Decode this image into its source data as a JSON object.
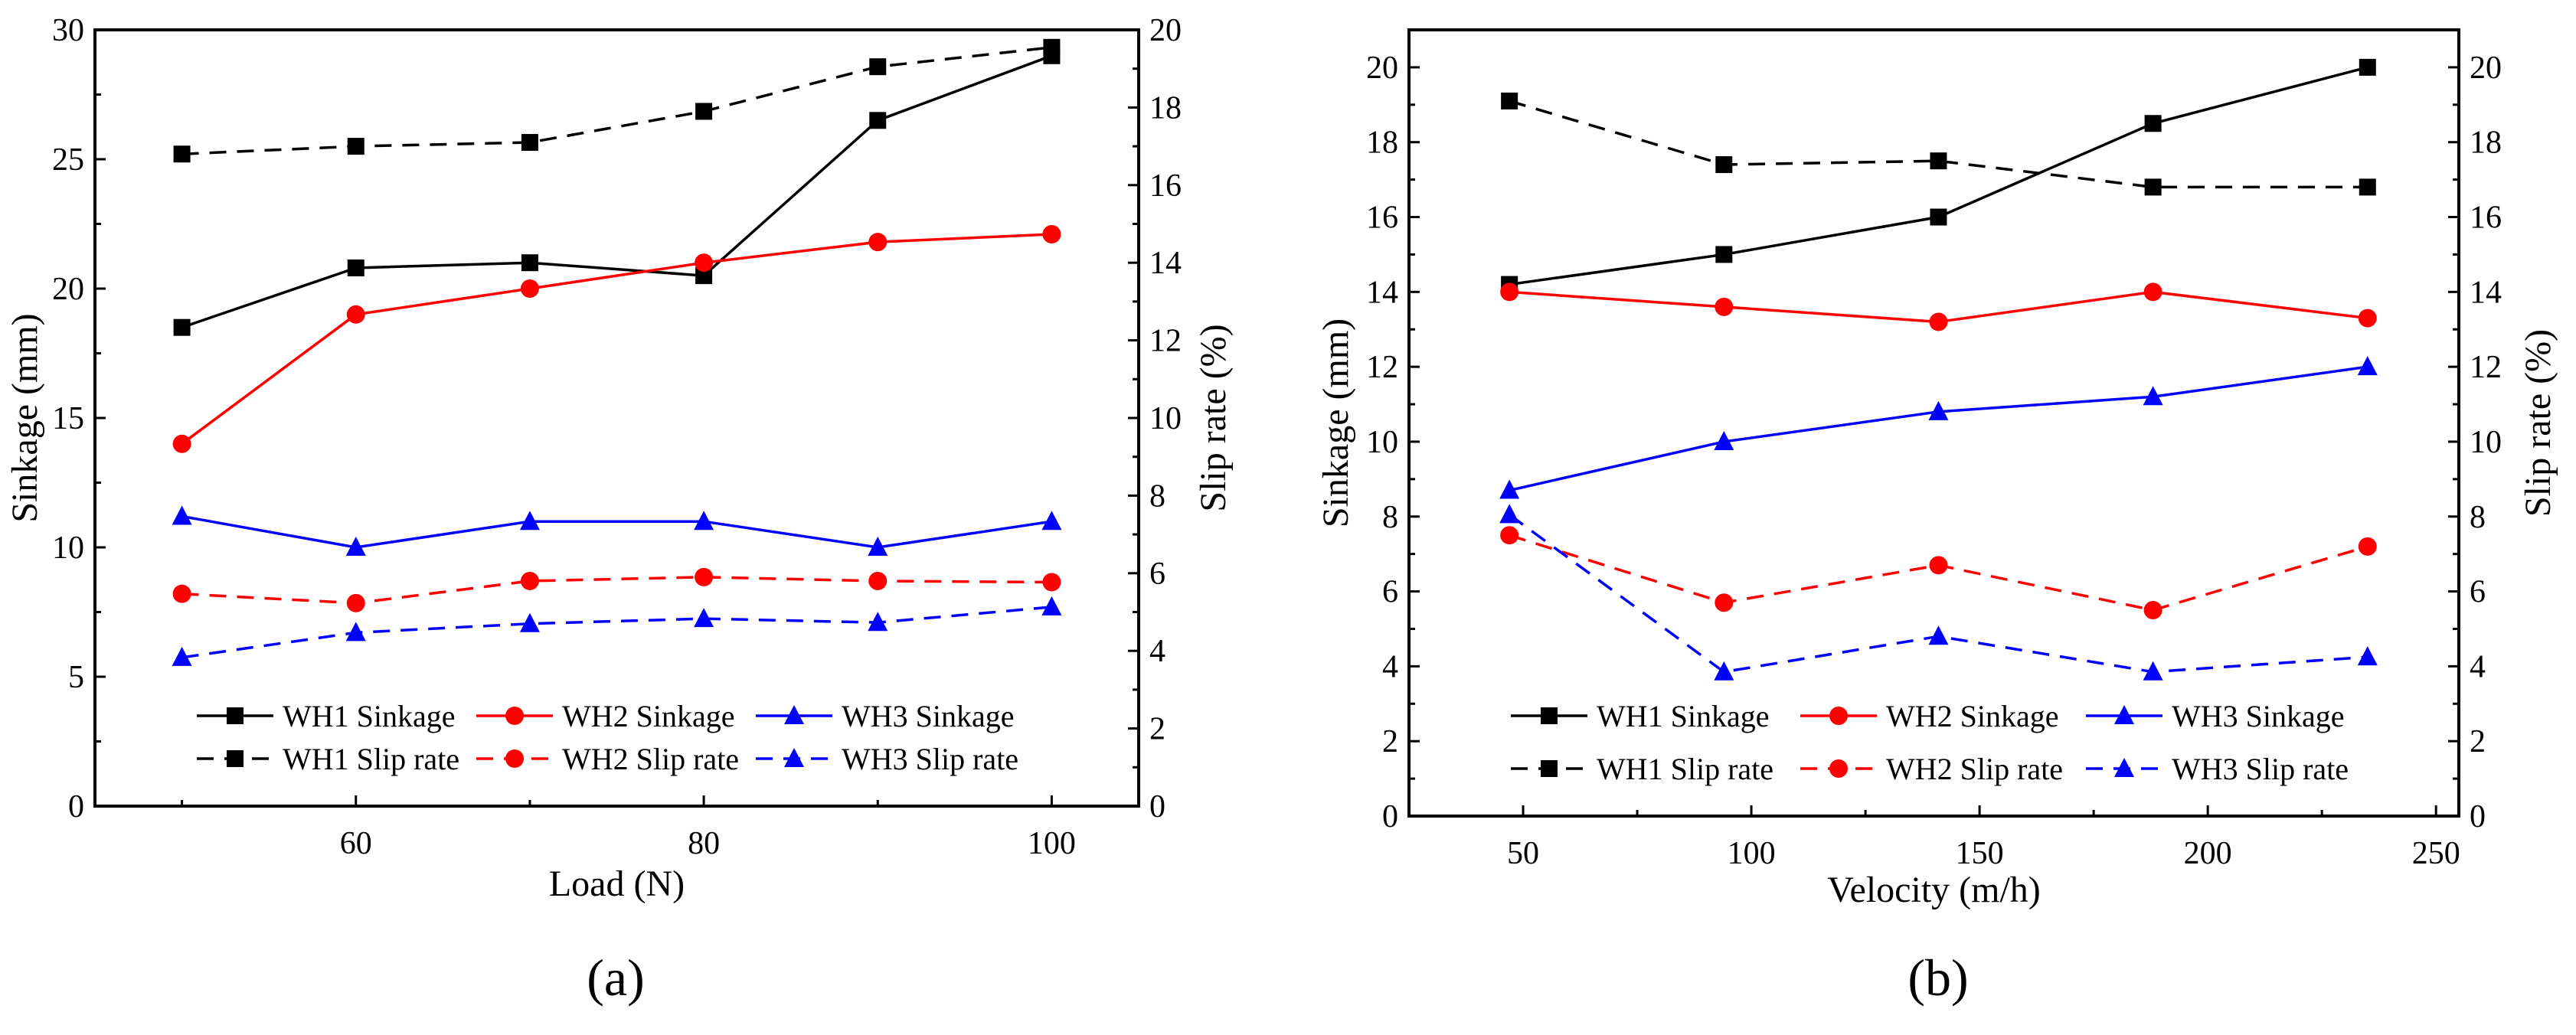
{
  "chart_data": [
    {
      "type": "line",
      "panel_label": "(a)",
      "xlabel": "Load (N)",
      "ylabel": "Sinkage (mm)",
      "y2label": "Slip rate (%)",
      "xlim": [
        45,
        105
      ],
      "ylim": [
        0,
        30
      ],
      "y2lim": [
        0,
        20
      ],
      "xticks": [
        60,
        80,
        100
      ],
      "xminor": [
        50,
        70,
        90
      ],
      "yticks": [
        0,
        5,
        10,
        15,
        20,
        25,
        30
      ],
      "y2ticks": [
        0,
        2,
        4,
        6,
        8,
        10,
        12,
        14,
        16,
        18,
        20
      ],
      "x": [
        50,
        60,
        70,
        80,
        90,
        100
      ],
      "legend_position": "bottom",
      "series": [
        {
          "name": "WH1 Sinkage",
          "axis": "left",
          "color": "#000000",
          "marker": "square",
          "dashed": false,
          "values": [
            18.5,
            20.8,
            21.0,
            20.5,
            26.5,
            29.0
          ]
        },
        {
          "name": "WH2 Sinkage",
          "axis": "left",
          "color": "#ff0000",
          "marker": "circle",
          "dashed": false,
          "values": [
            14.0,
            19.0,
            20.0,
            21.0,
            21.8,
            22.1
          ]
        },
        {
          "name": "WH3 Sinkage",
          "axis": "left",
          "color": "#0000ff",
          "marker": "triangle",
          "dashed": false,
          "values": [
            11.2,
            10.0,
            11.0,
            11.0,
            10.0,
            11.0
          ]
        },
        {
          "name": "WH1 Slip rate",
          "axis": "right",
          "color": "#000000",
          "marker": "square",
          "dashed": true,
          "values": [
            16.8,
            17.0,
            17.1,
            17.9,
            19.05,
            19.55
          ]
        },
        {
          "name": "WH2 Slip rate",
          "axis": "right",
          "color": "#ff0000",
          "marker": "circle",
          "dashed": true,
          "values": [
            5.47,
            5.23,
            5.8,
            5.9,
            5.8,
            5.77
          ]
        },
        {
          "name": "WH3 Slip rate",
          "axis": "right",
          "color": "#0000ff",
          "marker": "triangle",
          "dashed": true,
          "values": [
            3.83,
            4.47,
            4.7,
            4.83,
            4.73,
            5.13
          ]
        }
      ]
    },
    {
      "type": "line",
      "panel_label": "(b)",
      "xlabel": "Velocity (m/h)",
      "ylabel": "Sinkage (mm)",
      "y2label": "Slip rate (%)",
      "xlim": [
        25,
        255
      ],
      "ylim": [
        0,
        21
      ],
      "y2lim": [
        0,
        21
      ],
      "xticks": [
        50,
        100,
        150,
        200,
        250
      ],
      "xminor": [
        75,
        125,
        175,
        225
      ],
      "yticks": [
        0,
        2,
        4,
        6,
        8,
        10,
        12,
        14,
        16,
        18,
        20
      ],
      "y2ticks": [
        0,
        2,
        4,
        6,
        8,
        10,
        12,
        14,
        16,
        18,
        20
      ],
      "x": [
        47,
        94,
        141,
        188,
        235
      ],
      "legend_position": "bottom",
      "series": [
        {
          "name": "WH1 Sinkage",
          "axis": "left",
          "color": "#000000",
          "marker": "square",
          "dashed": false,
          "values": [
            14.2,
            15.0,
            16.0,
            18.5,
            20.0
          ]
        },
        {
          "name": "WH2 Sinkage",
          "axis": "left",
          "color": "#ff0000",
          "marker": "circle",
          "dashed": false,
          "values": [
            14.0,
            13.6,
            13.2,
            14.0,
            13.3
          ]
        },
        {
          "name": "WH3 Sinkage",
          "axis": "left",
          "color": "#0000ff",
          "marker": "triangle",
          "dashed": false,
          "values": [
            8.7,
            10.0,
            10.8,
            11.2,
            12.0
          ]
        },
        {
          "name": "WH1 Slip rate",
          "axis": "right",
          "color": "#000000",
          "marker": "square",
          "dashed": true,
          "values": [
            19.1,
            17.4,
            17.5,
            16.8,
            16.8
          ]
        },
        {
          "name": "WH2 Slip rate",
          "axis": "right",
          "color": "#ff0000",
          "marker": "circle",
          "dashed": true,
          "values": [
            7.5,
            5.7,
            6.7,
            5.5,
            7.2
          ]
        },
        {
          "name": "WH3 Slip rate",
          "axis": "right",
          "color": "#0000ff",
          "marker": "triangle",
          "dashed": true,
          "values": [
            8.05,
            3.85,
            4.8,
            3.85,
            4.25
          ]
        }
      ]
    }
  ]
}
